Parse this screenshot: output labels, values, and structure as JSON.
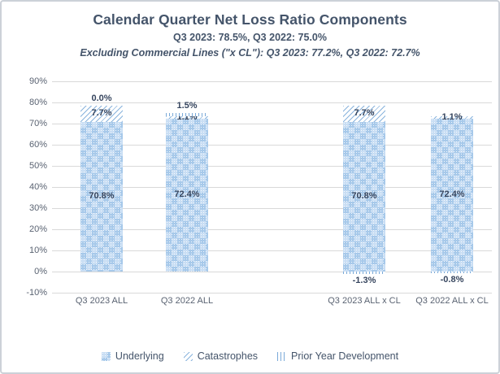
{
  "header": {
    "title": "Calendar Quarter Net Loss Ratio Components",
    "subtitle": "Q3 2023: 78.5%, Q3 2022: 75.0%",
    "subtitle2": "Excluding Commercial Lines (\"x CL\"): Q3 2023: 77.2%, Q3 2022: 72.7%"
  },
  "chart_data": {
    "type": "bar",
    "stacked": true,
    "categories": [
      "Q3 2023 ALL",
      "Q3 2022 ALL",
      "Q3 2023 ALL x CL",
      "Q3 2022 ALL x CL"
    ],
    "series": [
      {
        "key": "underlying",
        "name": "Underlying",
        "pattern": "checkerboard-dots",
        "label_placement": "center",
        "values": [
          70.8,
          72.4,
          70.8,
          72.4
        ],
        "labels": [
          "70.8%",
          "72.4%",
          "70.8%",
          "72.4%"
        ]
      },
      {
        "key": "catastrophes",
        "name": "Catastrophes",
        "pattern": "diagonal-hatch",
        "label_placement": "center",
        "values": [
          7.7,
          1.1,
          7.7,
          1.1
        ],
        "labels": [
          "7.7%",
          "1.1%",
          "7.7%",
          "1.1%"
        ]
      },
      {
        "key": "pyd",
        "name": "Prior Year Development",
        "pattern": "vertical-lines",
        "label_placement": "outside-end",
        "values": [
          0.0,
          1.5,
          -1.3,
          -0.8
        ],
        "labels": [
          "0.0%",
          "1.5%",
          "-1.3%",
          "-0.8%"
        ]
      }
    ],
    "totals": [
      78.5,
      75.0,
      77.2,
      72.7
    ],
    "ylim": [
      -10,
      90
    ],
    "yticks": [
      90,
      80,
      70,
      60,
      50,
      40,
      30,
      20,
      10,
      0,
      -10
    ],
    "ytick_labels": [
      "90%",
      "80%",
      "70%",
      "60%",
      "50%",
      "40%",
      "30%",
      "20%",
      "10%",
      "0%",
      "-10%"
    ],
    "grid": true,
    "legend_position": "bottom"
  },
  "colors": {
    "title_text": "#44546a",
    "data_label_text": "#36455e",
    "axis_text": "#5a6372",
    "gridline": "#d9d9d9",
    "pattern_blue_dark": "#a7c9ea",
    "pattern_blue_light": "#c9def4",
    "hatch_blue": "#8ab4dd",
    "vline_blue": "#7aa9d8",
    "frame_border": "#ccd1d8"
  }
}
